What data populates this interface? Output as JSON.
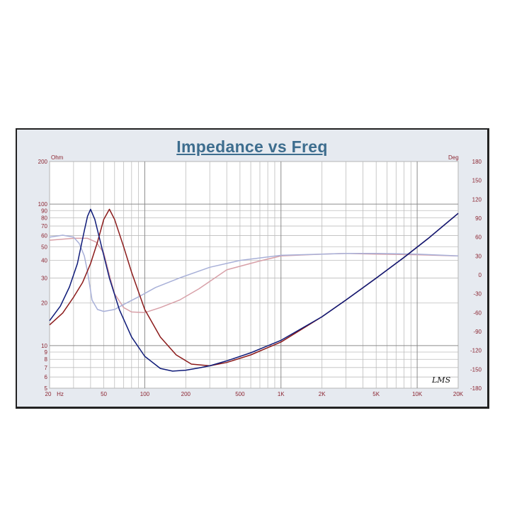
{
  "chart_data": {
    "type": "line",
    "title": "Impedance vs Freq",
    "y_left_unit": "Ohm",
    "y_right_unit": "Deg",
    "x_scale": "log",
    "y_left_scale": "log",
    "xlim": [
      20,
      20000
    ],
    "ylim_left": [
      5,
      200
    ],
    "ylim_right": [
      -180,
      180
    ],
    "grid": true,
    "x_ticks": [
      {
        "value": 20,
        "label": "20"
      },
      {
        "value": 50,
        "label": "50"
      },
      {
        "value": 100,
        "label": "100"
      },
      {
        "value": 200,
        "label": "200"
      },
      {
        "value": 500,
        "label": "500"
      },
      {
        "value": 1000,
        "label": "1K"
      },
      {
        "value": 2000,
        "label": "2K"
      },
      {
        "value": 5000,
        "label": "5K"
      },
      {
        "value": 10000,
        "label": "10K"
      },
      {
        "value": 20000,
        "label": "20K"
      }
    ],
    "x_unit_label": "Hz",
    "y_left_ticks": [
      {
        "value": 200,
        "label": "200"
      },
      {
        "value": 100,
        "label": "100"
      },
      {
        "value": 90,
        "label": "90"
      },
      {
        "value": 80,
        "label": "80"
      },
      {
        "value": 70,
        "label": "70"
      },
      {
        "value": 60,
        "label": "60"
      },
      {
        "value": 50,
        "label": "50"
      },
      {
        "value": 40,
        "label": "40"
      },
      {
        "value": 30,
        "label": "30"
      },
      {
        "value": 20,
        "label": "20"
      },
      {
        "value": 10,
        "label": "10"
      },
      {
        "value": 9,
        "label": "9"
      },
      {
        "value": 8,
        "label": "8"
      },
      {
        "value": 7,
        "label": "7"
      },
      {
        "value": 6,
        "label": "6"
      },
      {
        "value": 5,
        "label": "5"
      }
    ],
    "y_right_ticks": [
      {
        "value": 180,
        "label": "180"
      },
      {
        "value": 150,
        "label": "150"
      },
      {
        "value": 120,
        "label": "120"
      },
      {
        "value": 90,
        "label": "90"
      },
      {
        "value": 60,
        "label": "60"
      },
      {
        "value": 30,
        "label": "30"
      },
      {
        "value": 0,
        "label": "0"
      },
      {
        "value": -30,
        "label": "-30"
      },
      {
        "value": -60,
        "label": "-60"
      },
      {
        "value": -90,
        "label": "-90"
      },
      {
        "value": -120,
        "label": "-120"
      },
      {
        "value": -150,
        "label": "-150"
      },
      {
        "value": -180,
        "label": "-180"
      }
    ],
    "series": [
      {
        "axis": "left",
        "color": "#8b1a1a",
        "width": 1.5,
        "x": [
          20,
          25,
          30,
          35,
          40,
          45,
          50,
          55,
          60,
          70,
          80,
          100,
          130,
          170,
          220,
          300,
          400,
          600,
          1000,
          2000,
          3000,
          5000,
          8000,
          12000,
          20000
        ],
        "y": [
          14,
          17,
          22,
          28,
          38,
          54,
          78,
          92,
          78,
          50,
          33,
          18,
          11.5,
          8.6,
          7.4,
          7.2,
          7.6,
          8.6,
          10.6,
          16,
          21,
          30,
          42,
          57,
          86
        ]
      },
      {
        "axis": "left",
        "color": "#0e1a78",
        "width": 1.5,
        "x": [
          20,
          24,
          28,
          32,
          36,
          38,
          40,
          43,
          47,
          55,
          65,
          80,
          100,
          130,
          160,
          200,
          250,
          300,
          400,
          600,
          1000,
          2000,
          3000,
          5000,
          8000,
          12000,
          20000
        ],
        "y": [
          15,
          19,
          26,
          38,
          65,
          82,
          92,
          78,
          55,
          30,
          18,
          11.5,
          8.4,
          6.9,
          6.6,
          6.7,
          6.95,
          7.2,
          7.8,
          8.9,
          10.9,
          16,
          21,
          30,
          42,
          57,
          86
        ]
      },
      {
        "axis": "right",
        "color": "#d8a0a8",
        "width": 1.5,
        "x": [
          20,
          30,
          38,
          44,
          50,
          55,
          60,
          70,
          80,
          100,
          130,
          180,
          250,
          400,
          700,
          1000,
          2000,
          3000,
          5000,
          10000,
          20000
        ],
        "y": [
          55,
          58,
          58,
          52,
          35,
          0,
          -30,
          -52,
          -59,
          -60,
          -52,
          -40,
          -22,
          8,
          22,
          30,
          33,
          34,
          33,
          32,
          30
        ]
      },
      {
        "axis": "right",
        "color": "#a8b0d8",
        "width": 1.5,
        "x": [
          20,
          25,
          30,
          33,
          36,
          38,
          41,
          45,
          50,
          60,
          70,
          90,
          120,
          180,
          300,
          500,
          1000,
          2000,
          3000,
          5000,
          10000,
          20000
        ],
        "y": [
          60,
          63,
          60,
          50,
          30,
          5,
          -40,
          -55,
          -58,
          -55,
          -47,
          -35,
          -20,
          -5,
          12,
          23,
          31,
          33,
          34,
          34,
          33,
          30
        ]
      }
    ],
    "logo_text": "LMS"
  }
}
